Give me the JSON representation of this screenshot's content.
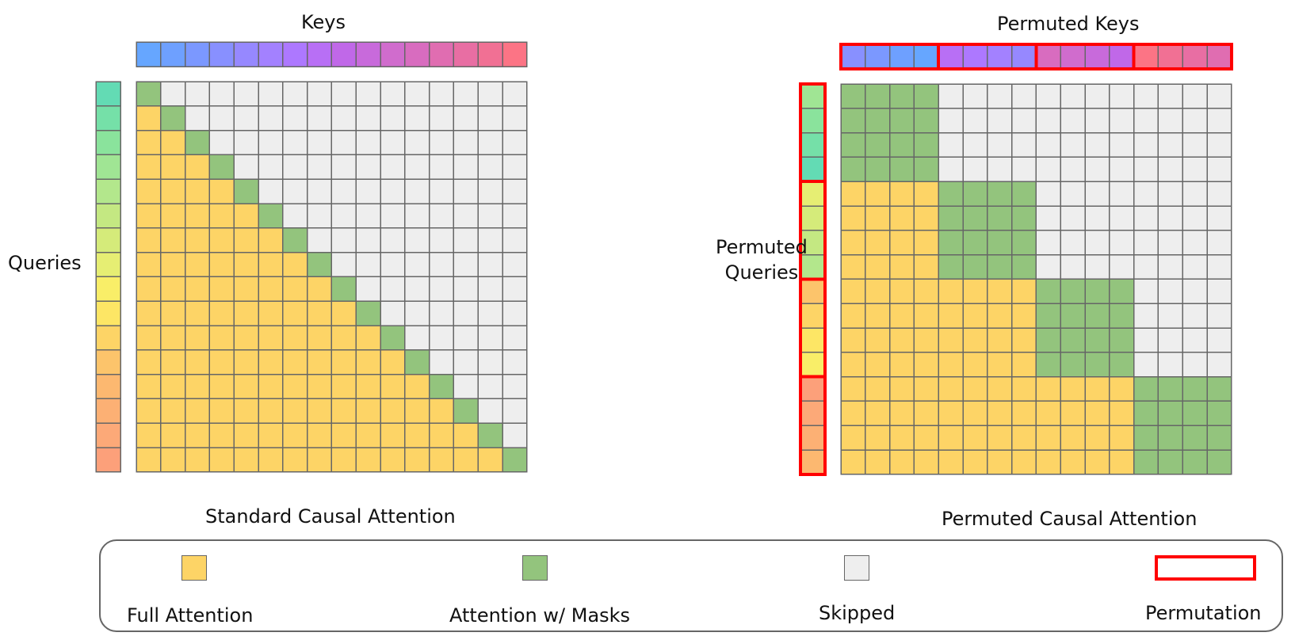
{
  "left_panel": {
    "keys_title": "Keys",
    "queries_label": "Queries",
    "caption": "Standard Causal Attention"
  },
  "right_panel": {
    "keys_title": "Permuted Keys",
    "queries_label_line1": "Permuted",
    "queries_label_line2": "Queries",
    "caption": "Permuted Causal Attention"
  },
  "legend": {
    "full": "Full Attention",
    "masks": "Attention w/ Masks",
    "skipped": "Skipped",
    "permutation": "Permutation"
  },
  "colors": {
    "full": "#fdd466",
    "masked": "#93c47d",
    "skipped": "#eeeeee",
    "permutation_border": "#ff0000",
    "grid_line": "#666666"
  },
  "grid_size": 16,
  "block_size": 4,
  "key_colors": [
    "#66a6ff",
    "#6ea0ff",
    "#7b98ff",
    "#8890ff",
    "#9688ff",
    "#a381ff",
    "#ad78ff",
    "#b86ff5",
    "#c068e8",
    "#c86adb",
    "#d06ccd",
    "#d86cbf",
    "#e06db1",
    "#e86ea3",
    "#f17094",
    "#fc7485"
  ],
  "query_colors": [
    "#63dbb4",
    "#75e0a8",
    "#8ae39c",
    "#a0e594",
    "#b3e78c",
    "#c4e882",
    "#d5eb7a",
    "#e6ee73",
    "#f9ee68",
    "#fde665",
    "#fdd466",
    "#fcc46b",
    "#fcb870",
    "#fcb074",
    "#fca978",
    "#fca07a"
  ],
  "permuted_key_order": [
    3,
    2,
    1,
    0,
    7,
    6,
    5,
    4,
    11,
    10,
    9,
    8,
    15,
    14,
    13,
    12
  ],
  "permuted_query_order": [
    3,
    2,
    1,
    0,
    7,
    6,
    5,
    4,
    11,
    10,
    9,
    8,
    15,
    14,
    13,
    12
  ]
}
